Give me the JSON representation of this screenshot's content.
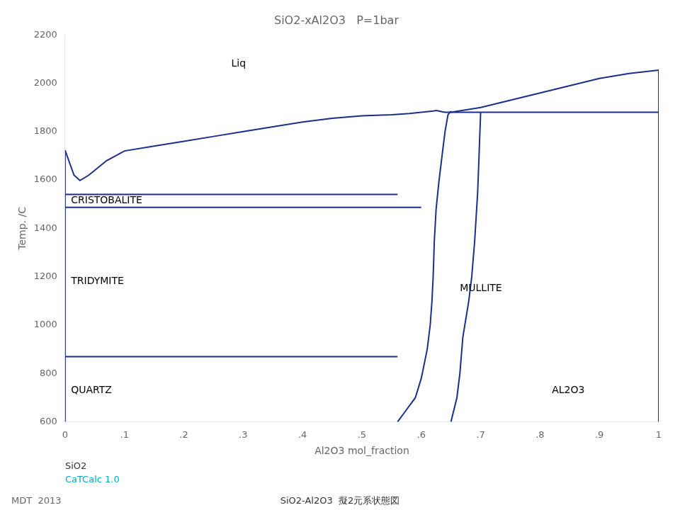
{
  "chart_data": {
    "type": "line",
    "title": "SiO2-xAl2O3   P=1bar",
    "xlabel": "Al2O3 mol_fraction",
    "ylabel": "Temp. /C",
    "color": "#1a2e8a",
    "grid": false,
    "xlim": [
      0,
      1
    ],
    "ylim": [
      600,
      2200
    ],
    "xticks": [
      0,
      {
        "value": 0.1,
        "label": ".1"
      },
      {
        "value": 0.2,
        "label": ".2"
      },
      {
        "value": 0.3,
        "label": ".3"
      },
      {
        "value": 0.4,
        "label": ".4"
      },
      {
        "value": 0.5,
        "label": ".5"
      },
      {
        "value": 0.6,
        "label": ".6"
      },
      {
        "value": 0.7,
        "label": ".7"
      },
      {
        "value": 0.8,
        "label": ".8"
      },
      {
        "value": 0.9,
        "label": ".9"
      },
      1
    ],
    "yticks": [
      600,
      800,
      1000,
      1200,
      1400,
      1600,
      1800,
      2000,
      2200
    ],
    "series": [
      {
        "x": [
          0.0,
          0.015,
          0.025,
          0.04,
          0.055,
          0.07,
          0.1,
          0.15,
          0.2,
          0.25,
          0.3,
          0.35,
          0.4,
          0.45,
          0.5,
          0.55,
          0.58,
          0.6,
          0.62,
          0.625,
          0.63,
          0.635,
          0.64,
          0.65,
          0.7,
          0.75,
          0.8,
          0.85,
          0.9,
          0.95,
          1.0
        ],
        "values": [
          1723,
          1620,
          1598,
          1620,
          1650,
          1680,
          1720,
          1740,
          1760,
          1780,
          1800,
          1820,
          1840,
          1855,
          1865,
          1870,
          1875,
          1880,
          1885,
          1887,
          1885,
          1882,
          1880,
          1880,
          1900,
          1930,
          1960,
          1990,
          2020,
          2040,
          2054
        ]
      },
      {
        "x": [
          0.0,
          0.56
        ],
        "values": [
          1540,
          1540
        ]
      },
      {
        "x": [
          0.0,
          0.6
        ],
        "values": [
          1487,
          1487
        ]
      },
      {
        "x": [
          0.0,
          0.56
        ],
        "values": [
          870,
          870
        ]
      },
      {
        "x": [
          0.56,
          0.575,
          0.59,
          0.6,
          0.61,
          0.615,
          0.618,
          0.62,
          0.622,
          0.625,
          0.63,
          0.635,
          0.64,
          0.645,
          0.65
        ],
        "values": [
          600,
          650,
          700,
          780,
          900,
          1000,
          1100,
          1200,
          1350,
          1480,
          1600,
          1700,
          1800,
          1870,
          1885
        ]
      },
      {
        "x": [
          0.65,
          0.655,
          0.66,
          0.665,
          0.67,
          0.68,
          0.685,
          0.69,
          0.695,
          0.7
        ],
        "values": [
          600,
          650,
          700,
          800,
          950,
          1100,
          1200,
          1350,
          1550,
          1880
        ]
      },
      {
        "x": [
          0.65,
          1.0
        ],
        "values": [
          1880,
          1880
        ]
      },
      {
        "x": [
          0.0,
          0.0
        ],
        "values": [
          600,
          1723
        ]
      },
      {
        "x": [
          1.0,
          1.0
        ],
        "values": [
          600,
          2054
        ]
      }
    ],
    "annotations": [
      {
        "text": "Liq",
        "x": 0.28,
        "y": 2080
      },
      {
        "text": "CRISTOBALITE",
        "x": 0.01,
        "y": 1513
      },
      {
        "text": "TRIDYMITE",
        "x": 0.01,
        "y": 1180
      },
      {
        "text": "QUARTZ",
        "x": 0.01,
        "y": 730
      },
      {
        "text": "MULLITE",
        "x": 0.665,
        "y": 1150
      },
      {
        "text": "AL2O3",
        "x": 0.82,
        "y": 730
      }
    ],
    "captions": [
      {
        "text": "SiO2"
      },
      {
        "text": "CaTCalc 1.0",
        "color": "#00aacc"
      }
    ],
    "footer": [
      "MDT  2013",
      "SiO2-Al2O3  擬2元系状態図"
    ]
  }
}
